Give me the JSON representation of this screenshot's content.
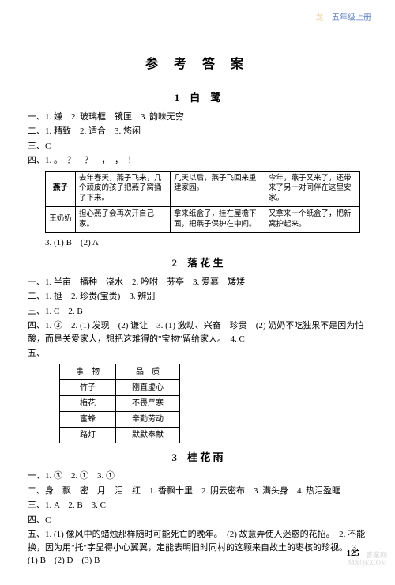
{
  "header": {
    "faded": "龙",
    "grade": "五年级上册"
  },
  "main_title": "参 考 答 案",
  "lesson1": {
    "title": "1　白　鹭",
    "l1": "一、1. 嫌　2. 玻璃框　镜匣　3. 韵味无穷",
    "l2": "二、1. 精致　2. 适合　3. 悠闲",
    "l3": "三、C",
    "l4": "四、1. 。　？　？　，　，　！",
    "row1_label": "燕子",
    "r1c1": "去年春天，燕子飞来，几个顽皮的孩子把燕子窝捅了下来。",
    "r1c2": "几天以后，燕子飞回来重建家园。",
    "r1c3": "今年，燕子又来了，还带来了另一对同伴在这里安家。",
    "row2_label": "王奶奶",
    "r2c1": "担心燕子会再次开自己家。",
    "r2c2": "拿来纸盒子，挂在屋檐下面，把燕子保护在中间。",
    "r2c3": "又拿来一个纸盒子，把新窝护起来。",
    "l5": "3. (1) B　(2) A"
  },
  "lesson2": {
    "title": "2　落 花 生",
    "l1": "一、1. 半亩　播种　浇水　2. 吟咐　芬亭　3. 爱慕　矮矮",
    "l2": "二、1. 挺　2. 珍贵(宝贵)　3. 辨别",
    "l3": "三、1. C　2. B",
    "l4": "四、1. ③　2. (1) 发现　(2) 谦让　3. (1) 激动、兴奋　珍贵　(2) 奶奶不吃独果不是因为怕酸，而是关爱家人，想把这难得的\"宝物\"留给家人。　4. C",
    "l5": "五、",
    "th1": "事　物",
    "th2": "品　质",
    "r1a": "竹子",
    "r1b": "刚直虚心",
    "r2a": "梅花",
    "r2b": "不畏严寒",
    "r3a": "蜜蜂",
    "r3b": "辛勤劳动",
    "r4a": "路灯",
    "r4b": "默默奉献"
  },
  "lesson3": {
    "title": "3　桂 花 雨",
    "l1": "一、1. ③　2. ①　3. ①",
    "l2": "二、身　飘　密　月　泪　红　1. 香飘十里　2. 阴云密布　3. 满头身　4. 热泪盈眶",
    "l3": "三、1. A　2. B　3. C",
    "l4": "四、C",
    "l5": "五、1. (1) 像风中的蜡烛那样随时可能死亡的晚年。　(2) 故意弄使人迷惑的花招。　2. 不能换，因为用\"托\"字显得小心翼翼，定能表明旧时同村的这颗来自故土的枣核的珍视。　3. (1) B　(2) D　(3) B"
  },
  "pagenum": "125",
  "wm1": "答案网",
  "wm2": "MXQE.COM"
}
